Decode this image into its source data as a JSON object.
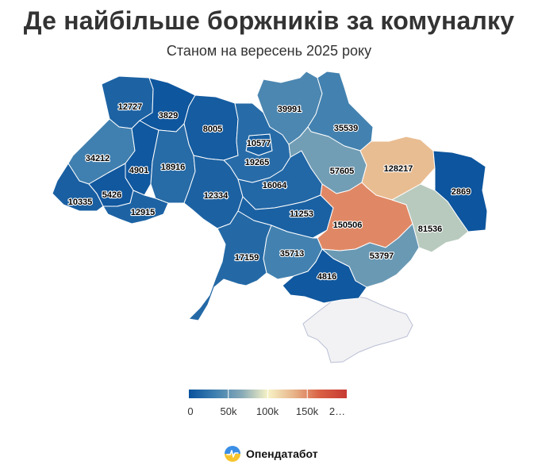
{
  "header": {
    "title": "Де найбільше боржників за комуналку",
    "subtitle": "Станом на вересень 2025 року"
  },
  "legend": {
    "ticks": [
      "0",
      "50k",
      "100k",
      "150k",
      "2…"
    ],
    "colors": [
      "#08519c",
      "#3e7fb0",
      "#86a9b7",
      "#f7f3c6",
      "#e7b389",
      "#d95f43",
      "#c63a33"
    ]
  },
  "brand": {
    "name": "Опендатабот"
  },
  "chart_data": {
    "type": "choropleth",
    "color_scale": {
      "min": 0,
      "max": 200000,
      "ticks": [
        0,
        50000,
        100000,
        150000,
        200000
      ]
    },
    "regions": [
      {
        "name": "Volyn",
        "value": 12727
      },
      {
        "name": "Rivne",
        "value": 3829
      },
      {
        "name": "Zhytomyr",
        "value": 8005
      },
      {
        "name": "Kyiv city",
        "value": 10577
      },
      {
        "name": "Kyiv",
        "value": 19265
      },
      {
        "name": "Chernihiv",
        "value": 39991
      },
      {
        "name": "Sumy",
        "value": 35539
      },
      {
        "name": "Lviv",
        "value": 34212
      },
      {
        "name": "Ternopil",
        "value": 4901
      },
      {
        "name": "Khmelnytskyi",
        "value": 18916
      },
      {
        "name": "Zakarpattia",
        "value": 10335
      },
      {
        "name": "Ivano-Frankivsk",
        "value": 5426
      },
      {
        "name": "Chernivtsi",
        "value": 12915
      },
      {
        "name": "Vinnytsia",
        "value": 12334
      },
      {
        "name": "Cherkasy",
        "value": 16064
      },
      {
        "name": "Poltava",
        "value": 57605
      },
      {
        "name": "Kharkiv",
        "value": 128217
      },
      {
        "name": "Luhansk",
        "value": 2869
      },
      {
        "name": "Kirovohrad",
        "value": 11253
      },
      {
        "name": "Dnipropetrovsk",
        "value": 150506
      },
      {
        "name": "Donetsk",
        "value": 81536
      },
      {
        "name": "Odesa",
        "value": 17159
      },
      {
        "name": "Mykolaiv",
        "value": 35713
      },
      {
        "name": "Zaporizhzhia",
        "value": 53797
      },
      {
        "name": "Kherson",
        "value": 4816
      }
    ]
  }
}
